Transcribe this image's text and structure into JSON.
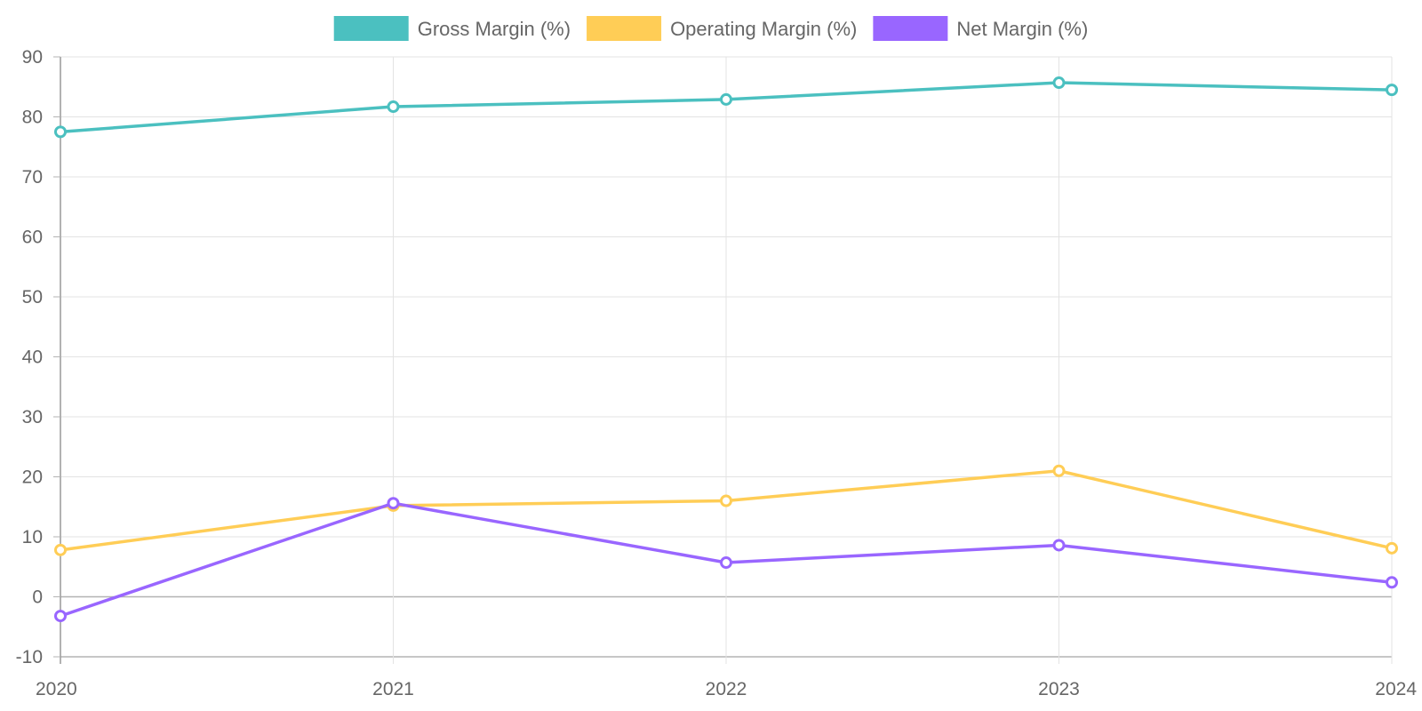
{
  "chart_data": {
    "type": "line",
    "categories": [
      "2020",
      "2021",
      "2022",
      "2023",
      "2024"
    ],
    "series": [
      {
        "name": "Gross Margin (%)",
        "color": "#4bc0c0",
        "values": [
          77.5,
          81.7,
          82.9,
          85.7,
          84.5
        ]
      },
      {
        "name": "Operating Margin (%)",
        "color": "#ffcd56",
        "values": [
          7.8,
          15.2,
          16.0,
          21.0,
          8.1
        ]
      },
      {
        "name": "Net Margin (%)",
        "color": "#9966ff",
        "values": [
          -3.2,
          15.6,
          5.7,
          8.6,
          2.4
        ]
      }
    ],
    "ylim": [
      -10,
      90
    ],
    "yticks": [
      "-10",
      "0",
      "10",
      "20",
      "30",
      "40",
      "50",
      "60",
      "70",
      "80",
      "90"
    ],
    "grid": true,
    "legend_position": "top"
  }
}
